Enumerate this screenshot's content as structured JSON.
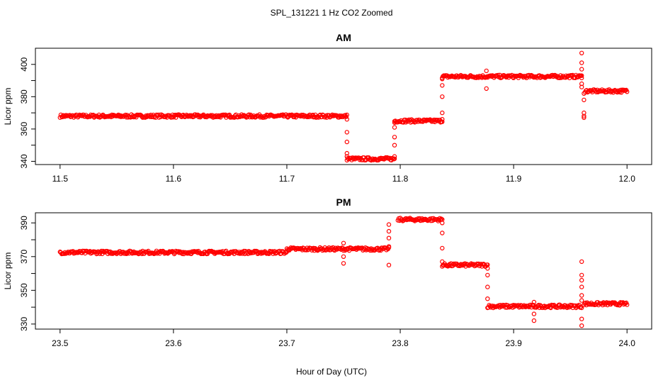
{
  "figure": {
    "title": "SPL_131221  1 Hz CO2 Zoomed",
    "xlabel": "Hour of Day (UTC)",
    "ylabel": "Licor ppm",
    "point_color": "#ff0000",
    "marker": "open-circle"
  },
  "chart_data": [
    {
      "type": "scatter",
      "title": "AM",
      "xlabel": "",
      "ylabel": "Licor ppm",
      "xlim": [
        11.5,
        12.0
      ],
      "ylim": [
        338,
        410
      ],
      "xticks": [
        "11.5",
        "11.6",
        "11.7",
        "11.8",
        "11.9",
        "12.0"
      ],
      "yticks": [
        "340",
        "360",
        "380",
        "400"
      ],
      "grid": false,
      "series": [
        {
          "segments": [
            {
              "x_start": 11.5,
              "x_end": 11.753,
              "y": 368
            },
            {
              "x_start": 11.753,
              "x_end": 11.795,
              "y": 341.5
            },
            {
              "x_start": 11.795,
              "x_end": 11.837,
              "y": 365
            },
            {
              "x_start": 11.837,
              "x_end": 11.96,
              "y": 392.5
            },
            {
              "x_start": 11.963,
              "x_end": 12.0,
              "y": 383.5
            }
          ],
          "transitions": [
            {
              "x": 11.753,
              "y": [
                366,
                358,
                352,
                345,
                343
              ]
            },
            {
              "x": 11.795,
              "y": [
                343,
                350,
                355,
                361,
                364
              ]
            },
            {
              "x": 11.837,
              "y": [
                366,
                370,
                380,
                387,
                391
              ]
            },
            {
              "x": 11.876,
              "y": [
                385,
                396
              ]
            },
            {
              "x": 11.96,
              "y": [
                407,
                401,
                397,
                393,
                388,
                386
              ]
            },
            {
              "x": 11.962,
              "y": [
                378,
                370,
                368,
                367,
                382
              ]
            }
          ]
        }
      ]
    },
    {
      "type": "scatter",
      "title": "PM",
      "xlabel": "Hour of Day (UTC)",
      "ylabel": "Licor ppm",
      "xlim": [
        23.5,
        24.0
      ],
      "ylim": [
        327,
        396
      ],
      "xticks": [
        "23.5",
        "23.6",
        "23.7",
        "23.8",
        "23.9",
        "24.0"
      ],
      "yticks": [
        "330",
        "350",
        "370",
        "390"
      ],
      "grid": false,
      "series": [
        {
          "segments": [
            {
              "x_start": 23.5,
              "x_end": 23.7,
              "y": 372.5
            },
            {
              "x_start": 23.7,
              "x_end": 23.79,
              "y": 374.5
            },
            {
              "x_start": 23.798,
              "x_end": 23.837,
              "y": 392
            },
            {
              "x_start": 23.837,
              "x_end": 23.877,
              "y": 365
            },
            {
              "x_start": 23.877,
              "x_end": 23.96,
              "y": 340.5
            },
            {
              "x_start": 23.962,
              "x_end": 24.0,
              "y": 342
            }
          ],
          "transitions": [
            {
              "x": 23.75,
              "y": [
                378,
                370,
                366
              ]
            },
            {
              "x": 23.79,
              "y": [
                365,
                376,
                381,
                385,
                389
              ]
            },
            {
              "x": 23.837,
              "y": [
                390,
                384,
                375,
                367
              ]
            },
            {
              "x": 23.877,
              "y": [
                363,
                359,
                352,
                345
              ]
            },
            {
              "x": 23.918,
              "y": [
                343,
                336,
                332
              ]
            },
            {
              "x": 23.96,
              "y": [
                367,
                359,
                356,
                352,
                347,
                344,
                333,
                329
              ]
            }
          ]
        }
      ]
    }
  ]
}
